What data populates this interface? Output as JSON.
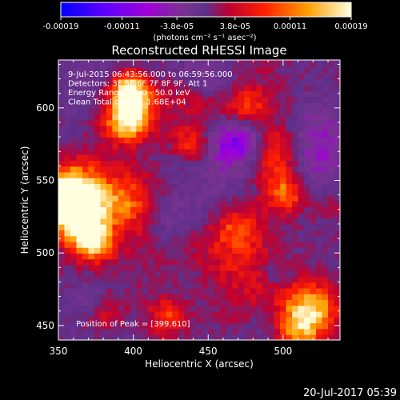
{
  "chart_data": {
    "type": "heatmap",
    "title": "Reconstructed RHESSI Image",
    "xlabel": "Heliocentric X (arcsec)",
    "ylabel": "Heliocentric Y (arcsec)",
    "xlim": [
      350,
      538
    ],
    "ylim": [
      440,
      633
    ],
    "xticks": [
      350,
      400,
      450,
      500
    ],
    "yticks": [
      450,
      500,
      550,
      600
    ],
    "colorbar": {
      "min": -0.00019,
      "max": 0.00019,
      "tick_values": [
        -0.00019,
        -0.00011,
        -3.8e-05,
        3.8e-05,
        0.00011,
        0.00019
      ],
      "tick_labels": [
        "-0.00019",
        "-0.00011",
        "-3.8e-05",
        "3.8e-05",
        "0.00011",
        "0.00019"
      ],
      "unit_label": "(photons cm⁻² s⁻¹ asec⁻²)",
      "colors": [
        "#0000ff",
        "#5a00ff",
        "#a000d8",
        "#7a3390",
        "#5f2f8a",
        "#c00030",
        "#ff2000",
        "#ffa000",
        "#ffffe0"
      ]
    },
    "info_lines": [
      "9-Jul-2015 06:43:56.000 to 06:59:56.000",
      "Detectors: 3F 5F 6F 7F 8F 9F, Att 1",
      "Energy Range: 25.0 - 50.0 keV",
      "Clean    Total counts: 1.68E+04"
    ],
    "peak_label": "Position of Peak = [399,610]",
    "peak": [
      399,
      610
    ]
  },
  "timestamp": "20-Jul-2017 05:39"
}
